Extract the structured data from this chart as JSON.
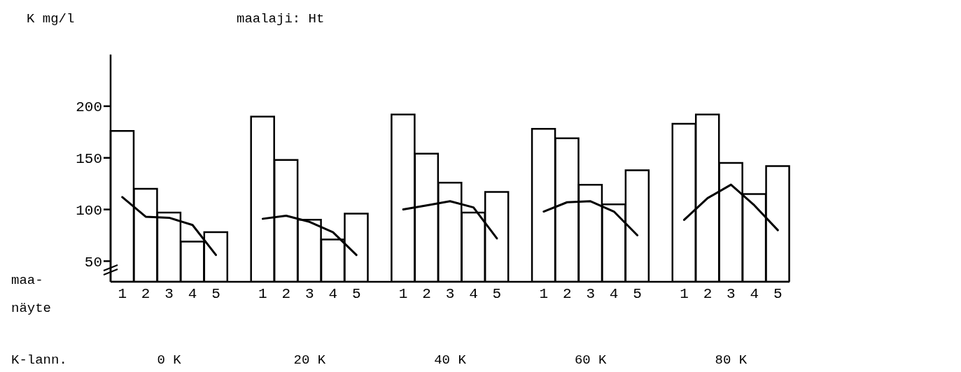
{
  "chart_data": {
    "type": "bar",
    "title": "maalaji: Ht",
    "ylabel": "K mg/l",
    "categories": [
      "1",
      "2",
      "3",
      "4",
      "5",
      null,
      "1",
      "2",
      "3",
      "4",
      "5",
      null,
      "1",
      "2",
      "3",
      "4",
      "5",
      null,
      "1",
      "2",
      "3",
      "4",
      "5",
      null,
      "1",
      "2",
      "3",
      "4",
      "5"
    ],
    "series": [
      {
        "color": "#ffffff",
        "values": [
          176,
          120,
          97,
          69,
          78,
          null,
          190,
          148,
          90,
          71,
          96,
          null,
          192,
          154,
          126,
          97,
          117,
          null,
          178,
          169,
          124,
          105,
          138,
          null,
          183,
          192,
          145,
          115,
          142
        ]
      },
      {
        "type": "line",
        "color": "#000000",
        "values": [
          112,
          93,
          92,
          85,
          56,
          null,
          91,
          94,
          88,
          78,
          56,
          null,
          100,
          104,
          108,
          102,
          72,
          null,
          98,
          107,
          108,
          98,
          75,
          null,
          90,
          111,
          124,
          104,
          80
        ]
      }
    ],
    "ylim": [
      30,
      250
    ],
    "yticks": [
      50,
      100,
      150,
      200
    ],
    "annotations": [
      "maa-\nnäyte",
      "K-lann.",
      "0 K",
      "20 K",
      "40 K",
      "60 K",
      "80 K"
    ]
  }
}
